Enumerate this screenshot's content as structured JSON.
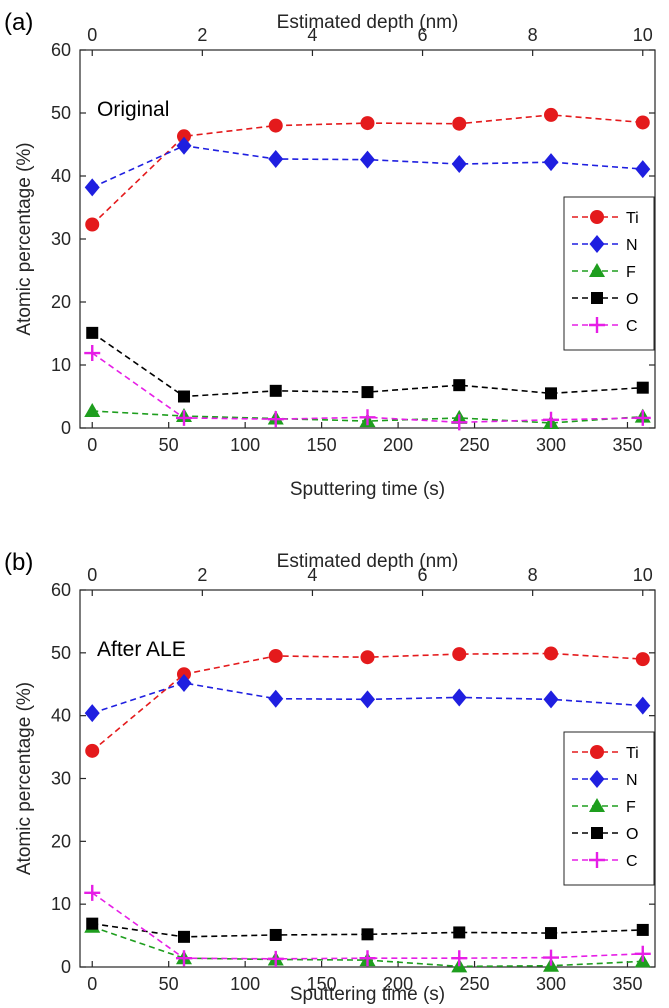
{
  "chart_data": [
    {
      "type": "line",
      "panel_label": "(a)",
      "inset_title": "Original",
      "xlabel": "Sputtering time (s)",
      "x2label": "Estimated depth (nm)",
      "ylabel": "Atomic percentage (%)",
      "xlim": [
        -8,
        368
      ],
      "ylim": [
        0,
        60
      ],
      "xticks": [
        0,
        50,
        100,
        150,
        200,
        250,
        300,
        350
      ],
      "x2ticks": [
        0,
        2,
        4,
        6,
        8,
        10
      ],
      "x2_per_x": 0.027778,
      "yticks": [
        0,
        10,
        20,
        30,
        40,
        50,
        60
      ],
      "legend_position": "right",
      "x": [
        0,
        60,
        120,
        180,
        240,
        300,
        360
      ],
      "series": [
        {
          "name": "Ti",
          "color": "#e41a1c",
          "marker": "circle",
          "values": [
            32.3,
            46.3,
            48.0,
            48.4,
            48.3,
            49.7,
            48.5
          ]
        },
        {
          "name": "N",
          "color": "#1f1fe0",
          "marker": "diamond",
          "values": [
            38.2,
            44.8,
            42.7,
            42.6,
            41.9,
            42.2,
            41.1
          ]
        },
        {
          "name": "F",
          "color": "#1e9e1e",
          "marker": "triangle",
          "values": [
            2.7,
            1.9,
            1.5,
            1.1,
            1.6,
            0.8,
            1.8
          ]
        },
        {
          "name": "O",
          "color": "#000000",
          "marker": "square",
          "values": [
            15.1,
            5.0,
            5.9,
            5.7,
            6.8,
            5.5,
            6.4
          ]
        },
        {
          "name": "C",
          "color": "#e61ee6",
          "marker": "plus",
          "values": [
            11.9,
            1.6,
            1.4,
            1.7,
            0.9,
            1.3,
            1.6
          ]
        }
      ]
    },
    {
      "type": "line",
      "panel_label": "(b)",
      "inset_title": "After ALE",
      "xlabel": "Sputtering time (s)",
      "x2label": "Estimated depth (nm)",
      "ylabel": "Atomic percentage (%)",
      "xlim": [
        -8,
        368
      ],
      "ylim": [
        0,
        60
      ],
      "xticks": [
        0,
        50,
        100,
        150,
        200,
        250,
        300,
        350
      ],
      "x2ticks": [
        0,
        2,
        4,
        6,
        8,
        10
      ],
      "x2_per_x": 0.027778,
      "yticks": [
        0,
        10,
        20,
        30,
        40,
        50,
        60
      ],
      "legend_position": "right",
      "x": [
        0,
        60,
        120,
        180,
        240,
        300,
        360
      ],
      "series": [
        {
          "name": "Ti",
          "color": "#e41a1c",
          "marker": "circle",
          "values": [
            34.4,
            46.6,
            49.5,
            49.3,
            49.8,
            49.9,
            49.0
          ]
        },
        {
          "name": "N",
          "color": "#1f1fe0",
          "marker": "diamond",
          "values": [
            40.4,
            45.2,
            42.7,
            42.6,
            42.9,
            42.6,
            41.6
          ]
        },
        {
          "name": "F",
          "color": "#1e9e1e",
          "marker": "triangle",
          "values": [
            6.4,
            1.4,
            1.2,
            1.1,
            0.1,
            0.2,
            0.9
          ]
        },
        {
          "name": "O",
          "color": "#000000",
          "marker": "square",
          "values": [
            6.9,
            4.8,
            5.1,
            5.2,
            5.5,
            5.4,
            5.9
          ]
        },
        {
          "name": "C",
          "color": "#e61ee6",
          "marker": "plus",
          "values": [
            11.8,
            1.4,
            1.3,
            1.4,
            1.4,
            1.5,
            2.1
          ]
        }
      ]
    }
  ]
}
